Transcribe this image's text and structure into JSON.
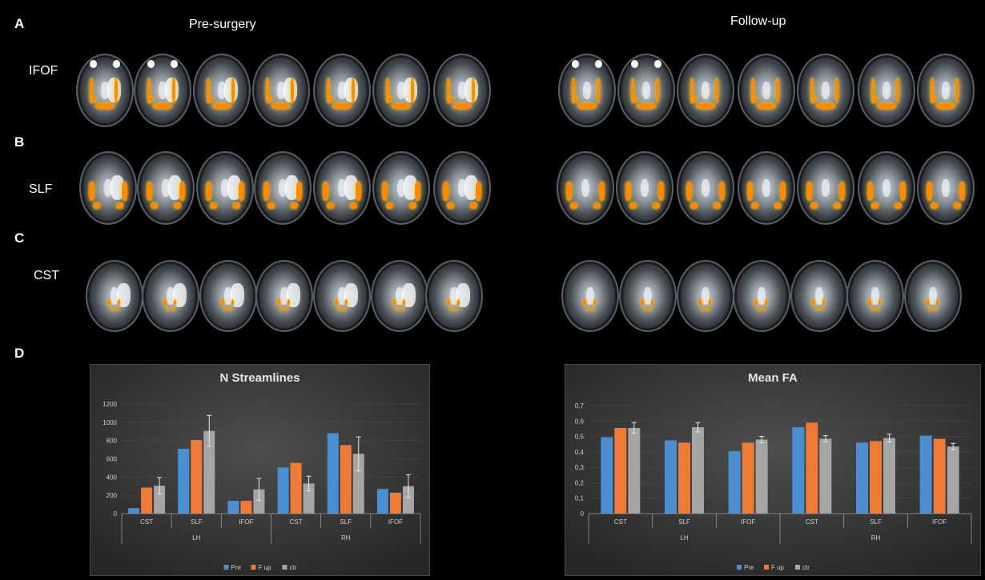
{
  "panels": {
    "a": "A",
    "b": "B",
    "c": "C",
    "d": "D",
    "pre": "Pre-surgery",
    "follow": "Follow-up",
    "ifof": "IFOF",
    "slf": "SLF",
    "cst": "CST"
  },
  "chart_data": [
    {
      "type": "bar",
      "title": "N Streamlines",
      "categories": [
        "CST",
        "SLF",
        "IFOF",
        "CST",
        "SLF",
        "IFOF"
      ],
      "groups": [
        "LH",
        "RH"
      ],
      "ylim": [
        0,
        1200
      ],
      "yticks": [
        "0",
        "200",
        "400",
        "600",
        "800",
        "1000",
        "1200"
      ],
      "series": [
        {
          "name": "Pre",
          "color": "#4a8fd4",
          "values": [
            60,
            710,
            140,
            505,
            880,
            270
          ]
        },
        {
          "name": "F up",
          "color": "#ef7a35",
          "values": [
            285,
            805,
            140,
            555,
            750,
            230
          ]
        },
        {
          "name": "ctr",
          "color": "#a5a5a5",
          "values": [
            305,
            905,
            265,
            330,
            655,
            300
          ],
          "errors": [
            90,
            170,
            120,
            80,
            185,
            125
          ]
        }
      ],
      "legend": "bottom"
    },
    {
      "type": "bar",
      "title": "Mean FA",
      "categories": [
        "CST",
        "SLF",
        "IFOF",
        "CST",
        "SLF",
        "IFOF"
      ],
      "groups": [
        "LH",
        "RH"
      ],
      "ylim": [
        0,
        0.7
      ],
      "yticks": [
        "0",
        "0,1",
        "0,2",
        "0,3",
        "0,4",
        "0,5",
        "0,6",
        "0,7"
      ],
      "series": [
        {
          "name": "Pre",
          "color": "#4a8fd4",
          "values": [
            0.495,
            0.475,
            0.405,
            0.56,
            0.46,
            0.505
          ]
        },
        {
          "name": "F up",
          "color": "#ef7a35",
          "values": [
            0.555,
            0.46,
            0.46,
            0.59,
            0.47,
            0.485
          ]
        },
        {
          "name": "ctr",
          "color": "#a5a5a5",
          "values": [
            0.555,
            0.56,
            0.48,
            0.485,
            0.49,
            0.435
          ],
          "errors": [
            0.035,
            0.03,
            0.02,
            0.02,
            0.025,
            0.02
          ]
        }
      ],
      "legend": "bottom"
    }
  ]
}
